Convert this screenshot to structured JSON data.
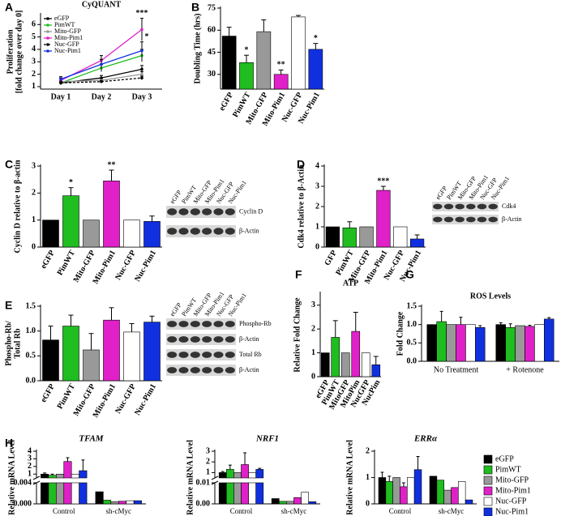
{
  "chart_data": [
    {
      "type": "line",
      "panel": "A",
      "title": "CyQUANT",
      "ylabel": [
        "Proliferation",
        "[fold change over day 0]"
      ],
      "categories": [
        "Day 1",
        "Day 2",
        "Day 3"
      ],
      "ylim": [
        0.8,
        6.8
      ],
      "yticks": [
        1,
        2,
        3,
        4,
        5,
        6
      ],
      "series": [
        {
          "name": "eGFP",
          "color": "#000000",
          "values": [
            1.3,
            1.7,
            2.4
          ],
          "errors": [
            0.1,
            0.2,
            0.3
          ]
        },
        {
          "name": "PimWT",
          "color": "#1fbd1f",
          "values": [
            1.3,
            2.5,
            3.5
          ],
          "errors": [
            0.15,
            0.3,
            0.5
          ]
        },
        {
          "name": "Mito-GFP",
          "color": "#999999",
          "values": [
            1.4,
            1.5,
            2.0
          ],
          "errors": [
            0.1,
            0.15,
            0.2
          ]
        },
        {
          "name": "Mito-Pim1",
          "color": "#e020c8",
          "values": [
            1.5,
            3.1,
            5.6
          ],
          "errors": [
            0.2,
            0.4,
            0.9
          ],
          "annotations": [
            null,
            null,
            "***"
          ]
        },
        {
          "name": "Nuc-GFP",
          "color": "#000000",
          "dash": true,
          "values": [
            1.3,
            1.4,
            1.7
          ],
          "errors": [
            0.1,
            0.1,
            0.15
          ]
        },
        {
          "name": "Nuc-Pim1",
          "color": "#1030e0",
          "values": [
            1.6,
            2.8,
            3.9
          ],
          "errors": [
            0.2,
            0.4,
            0.7
          ],
          "annotations": [
            null,
            null,
            "*"
          ]
        }
      ]
    },
    {
      "type": "bar",
      "panel": "B",
      "ylabel": "Doubling Time (hrs)",
      "categories": [
        "eGFP",
        "PimWT",
        "Mito-GFP",
        "Mito-Pim1",
        "Nuc-GFP",
        "Nuc-Pim1"
      ],
      "values": [
        56,
        38,
        59,
        30,
        69,
        47
      ],
      "errors": [
        6,
        5,
        8,
        3,
        1,
        4
      ],
      "annotations": [
        null,
        "*",
        null,
        "**",
        null,
        "*"
      ],
      "colors": [
        "#000000",
        "#1fbd1f",
        "#999999",
        "#e020c8",
        "#ffffff",
        "#1030e0"
      ],
      "ylim": [
        20,
        75
      ],
      "yticks": [
        30,
        45,
        60,
        75
      ]
    },
    {
      "type": "bar",
      "panel": "C",
      "ylabel": "Cyclin D relative to β-actin",
      "categories": [
        "eGFP",
        "PimWT",
        "Mito-GFP",
        "Mito-Pim1",
        "Nuc-GFP",
        "Nuc-Pim1"
      ],
      "values": [
        1,
        1.9,
        1,
        2.45,
        1,
        0.95
      ],
      "errors": [
        0,
        0.3,
        0,
        0.4,
        0,
        0.2
      ],
      "annotations": [
        null,
        "*",
        null,
        "**",
        null,
        null
      ],
      "colors": [
        "#000000",
        "#1fbd1f",
        "#999999",
        "#e020c8",
        "#ffffff",
        "#1030e0"
      ],
      "ylim": [
        0,
        3
      ],
      "yticks": [
        0,
        1,
        2,
        3
      ],
      "blot": {
        "lanes": [
          "eGFP",
          "PimWT",
          "Mito-GFP",
          "Mito-Pim1",
          "Nuc-GFP",
          "Nuc-Pim1"
        ],
        "bands": [
          "Cyclin D",
          "β-Actin"
        ]
      }
    },
    {
      "type": "bar",
      "panel": "D",
      "ylabel": "Cdk4 relative to β-Actin",
      "categories": [
        "GFP",
        "PimWT",
        "Mito-GFP",
        "Mito-Pim1",
        "Nuc-GFP",
        "Nuc-Pim1"
      ],
      "values": [
        1,
        0.95,
        1,
        2.8,
        1,
        0.4
      ],
      "errors": [
        0,
        0.3,
        0,
        0.2,
        0,
        0.2
      ],
      "annotations": [
        null,
        null,
        null,
        "***",
        null,
        null
      ],
      "colors": [
        "#000000",
        "#1fbd1f",
        "#999999",
        "#e020c8",
        "#ffffff",
        "#1030e0"
      ],
      "ylim": [
        0,
        4
      ],
      "yticks": [
        0,
        1,
        2,
        3,
        4
      ],
      "blot": {
        "lanes": [
          "eGFP",
          "PimWT",
          "Mito-GFP",
          "Mito-Pim1",
          "Nuc-GFP",
          "Nuc-Pim1"
        ],
        "bands": [
          "Cdk4",
          "β-Actin"
        ]
      }
    },
    {
      "type": "bar",
      "panel": "E",
      "ylabel": [
        "Phospho-Rb/",
        "Total Rb"
      ],
      "categories": [
        "eGFP",
        "PimWT",
        "Mito-GFP",
        "Mito-Pim1",
        "Nuc-GFP",
        "Nuc-Pim1"
      ],
      "values": [
        0.82,
        1.1,
        0.62,
        1.22,
        0.98,
        1.18
      ],
      "errors": [
        0.28,
        0.22,
        0.33,
        0.25,
        0.17,
        0.12
      ],
      "colors": [
        "#000000",
        "#1fbd1f",
        "#999999",
        "#e020c8",
        "#ffffff",
        "#1030e0"
      ],
      "ylim": [
        0,
        1.5
      ],
      "yticks": [
        {
          "value": 0,
          "label": "0.0"
        },
        {
          "value": 0.5,
          "label": "0.5"
        },
        {
          "value": 1,
          "label": "1.0"
        },
        {
          "value": 1.5,
          "label": "1.5"
        }
      ],
      "blot": {
        "lanes": [
          "eGFP",
          "PimWT",
          "Mito-GFP",
          "Mito-Pim1",
          "Nuc-GFP",
          "Nuc-Pim1"
        ],
        "bands": [
          "Phospho-Rb",
          "β-Actin",
          "Total Rb",
          "β-Actin"
        ]
      }
    },
    {
      "type": "bar",
      "panel": "F",
      "title": "ATP",
      "ylabel": "Relative Fold Change",
      "categories": [
        "eGFP",
        "PimWT",
        "MitoGFP",
        "MitoPim",
        "NucGFP",
        "NucPim"
      ],
      "values": [
        1,
        1.65,
        1,
        1.9,
        1,
        0.5
      ],
      "errors": [
        0,
        0.7,
        0,
        0.8,
        0,
        0.35
      ],
      "colors": [
        "#000000",
        "#1fbd1f",
        "#999999",
        "#e020c8",
        "#ffffff",
        "#1030e0"
      ],
      "ylim": [
        0,
        3.5
      ],
      "yticks": [
        0,
        1,
        2,
        3
      ]
    },
    {
      "type": "grouped_bar",
      "panel": "G",
      "title": "ROS Levels",
      "ylabel": "Fold Change",
      "categories": [
        "No Treatment",
        "+ Rotenone"
      ],
      "ylim": [
        0,
        1.5
      ],
      "yticks": [
        {
          "value": 0,
          "label": "0.0"
        },
        {
          "value": 0.5,
          "label": "0.5"
        },
        {
          "value": 1,
          "label": "1.0"
        },
        {
          "value": 1.5,
          "label": "1.5"
        }
      ],
      "series": [
        {
          "color": "#000000",
          "values": [
            1,
            1
          ],
          "errors": [
            0,
            0.05
          ]
        },
        {
          "color": "#1fbd1f",
          "values": [
            1.08,
            0.92
          ],
          "errors": [
            0.28,
            0.1
          ]
        },
        {
          "color": "#999999",
          "values": [
            1,
            0.97
          ],
          "errors": [
            0,
            0
          ]
        },
        {
          "color": "#e020c8",
          "values": [
            1,
            0.95
          ],
          "errors": [
            0.2,
            0.03
          ]
        },
        {
          "color": "#ffffff",
          "values": [
            1,
            1
          ],
          "errors": [
            0,
            0
          ]
        },
        {
          "color": "#1030e0",
          "values": [
            0.92,
            1.15
          ],
          "errors": [
            0.05,
            0.04
          ]
        }
      ]
    },
    {
      "type": "broken_bar",
      "panel": "H",
      "ylabel": "Relative mRNA Level",
      "categories": [
        "Control",
        "sh-cMyc"
      ],
      "series": [
        {
          "name": "eGFP",
          "color": "#000000"
        },
        {
          "name": "PimWT",
          "color": "#1fbd1f"
        },
        {
          "name": "Mito-GFP",
          "color": "#999999"
        },
        {
          "name": "Mito-Pim1",
          "color": "#e020c8"
        },
        {
          "name": "Nuc-GFP",
          "color": "#ffffff"
        },
        {
          "name": "Nuc-Pim1",
          "color": "#1030e0"
        }
      ],
      "subplots": [
        {
          "title": "TFAM",
          "ylim_lower": [
            0,
            0.004
          ],
          "yticks_lower": [
            {
              "value": 0,
              "label": "0.000"
            },
            {
              "value": 0.004,
              "label": "0.004"
            }
          ],
          "ylim": [
            0.5,
            4
          ],
          "yticks": [
            1,
            2,
            3,
            4
          ],
          "values": [
            [
              1,
              0.0023
            ],
            [
              0.85,
              0.0007
            ],
            [
              1,
              0.0004
            ],
            [
              2.65,
              0.0005
            ],
            [
              1,
              0.0006
            ],
            [
              1.45,
              0.0006
            ]
          ],
          "errors": [
            [
              0.15,
              null
            ],
            [
              0.15,
              null
            ],
            [
              0,
              null
            ],
            [
              0.5,
              null
            ],
            [
              0,
              null
            ],
            [
              1.4,
              null
            ]
          ]
        },
        {
          "title": "NRF1",
          "ylim_lower": [
            0,
            0.01
          ],
          "yticks_lower": [
            {
              "value": 0,
              "label": "0.00"
            },
            {
              "value": 0.01,
              "label": "0.01"
            }
          ],
          "ylim": [
            0.5,
            3
          ],
          "yticks": [
            1,
            2,
            3
          ],
          "values": [
            [
              1,
              0.0025
            ],
            [
              1.3,
              0.0012
            ],
            [
              1,
              0.0012
            ],
            [
              1.75,
              0.003
            ],
            [
              1,
              0.0055
            ],
            [
              1.3,
              0.001
            ]
          ],
          "errors": [
            [
              0.1,
              null
            ],
            [
              0.4,
              null
            ],
            [
              0,
              null
            ],
            [
              1.1,
              null
            ],
            [
              0,
              null
            ],
            [
              0.1,
              null
            ]
          ]
        },
        {
          "title": "ERRα",
          "ylim": [
            0,
            2
          ],
          "yticks": [
            0,
            1,
            2
          ],
          "values": [
            [
              1,
              1.05
            ],
            [
              0.85,
              0.9
            ],
            [
              1,
              0.52
            ],
            [
              0.65,
              0.62
            ],
            [
              1,
              0.85
            ],
            [
              1.3,
              0.15
            ]
          ],
          "errors": [
            [
              0.2,
              null
            ],
            [
              0.2,
              null
            ],
            [
              0,
              null
            ],
            [
              0.15,
              null
            ],
            [
              0,
              null
            ],
            [
              0.5,
              null
            ]
          ]
        }
      ]
    }
  ]
}
